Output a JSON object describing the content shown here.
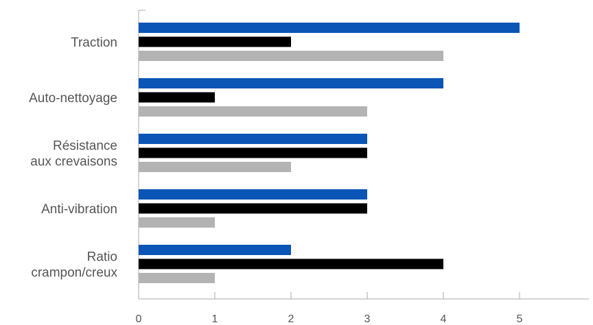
{
  "chart_data": {
    "type": "bar",
    "orientation": "horizontal",
    "categories": [
      [
        "Traction"
      ],
      [
        "Auto-nettoyage"
      ],
      [
        "Résistance",
        "aux crevaisons"
      ],
      [
        "Anti-vibration"
      ],
      [
        "Ratio",
        "crampon/creux"
      ]
    ],
    "series": [
      {
        "color": "#0a55b6",
        "values": [
          5,
          4,
          3,
          3,
          2
        ]
      },
      {
        "color": "#000000",
        "values": [
          2,
          1,
          3,
          3,
          4
        ]
      },
      {
        "color": "#b3b3b3",
        "values": [
          4,
          3,
          2,
          1,
          1
        ]
      }
    ],
    "xlim": [
      0,
      5.9
    ],
    "xticks": [
      "0",
      "1",
      "2",
      "3",
      "4",
      "5"
    ],
    "legend": "none",
    "grid": false,
    "title": "",
    "xlabel": "",
    "ylabel": ""
  }
}
